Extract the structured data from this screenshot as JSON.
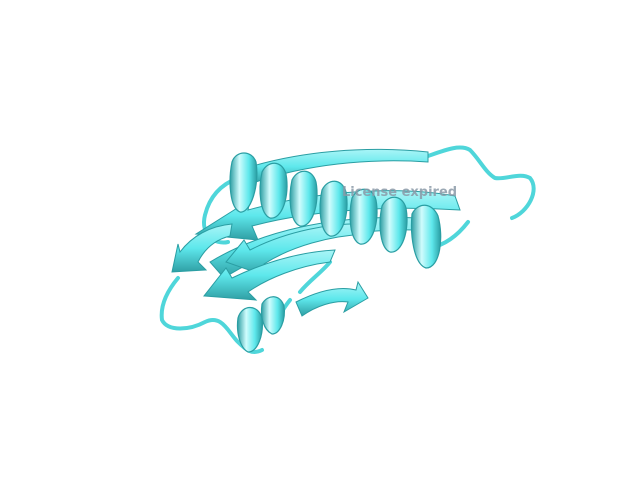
{
  "watermark": {
    "text": "License expired"
  },
  "colors": {
    "background": "#ffffff",
    "cartoon": "#5ee8ec",
    "cartoon_highlight": "#c8fbfc",
    "cartoon_shadow": "#2a9ea3",
    "watermark": "#8a9aa8"
  },
  "scene": {
    "type": "protein cartoon rendering"
  }
}
